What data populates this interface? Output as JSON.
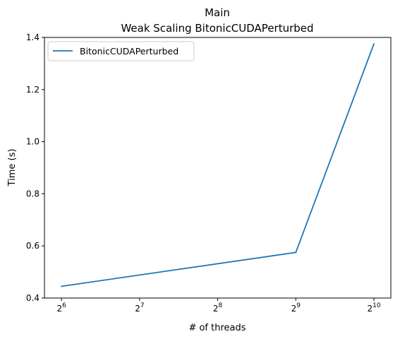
{
  "chart_data": {
    "type": "line",
    "title": "Main",
    "subtitle": "Weak Scaling BitonicCUDAPerturbed",
    "xlabel": "# of threads",
    "ylabel": "Time (s)",
    "x_scale": "log2",
    "x_ticks": [
      {
        "base": "2",
        "exp": "6",
        "value": 64
      },
      {
        "base": "2",
        "exp": "7",
        "value": 128
      },
      {
        "base": "2",
        "exp": "8",
        "value": 256
      },
      {
        "base": "2",
        "exp": "9",
        "value": 512
      },
      {
        "base": "2",
        "exp": "10",
        "value": 1024
      }
    ],
    "y_ticks": [
      "0.4",
      "0.6",
      "0.8",
      "1.0",
      "1.2",
      "1.4"
    ],
    "ylim": [
      0.4,
      1.4
    ],
    "xlim": [
      55,
      1190
    ],
    "legend_position": "upper-left",
    "grid": false,
    "series": [
      {
        "name": "BitonicCUDAPerturbed",
        "color": "#1f77b4",
        "x": [
          64,
          512,
          1024
        ],
        "y": [
          0.445,
          0.575,
          1.375
        ]
      }
    ]
  }
}
